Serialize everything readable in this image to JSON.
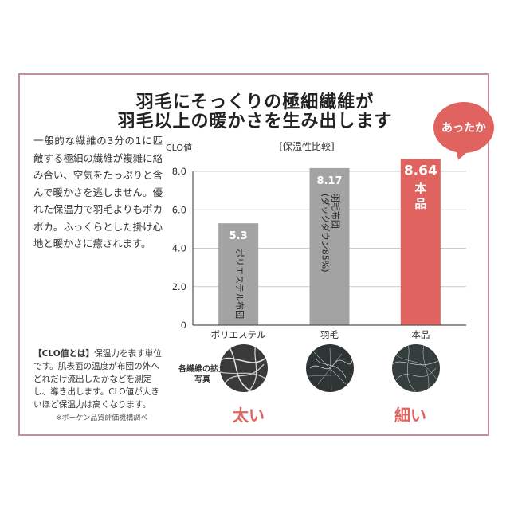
{
  "title_line1": "羽毛にそっくりの極細繊維が",
  "title_line2": "羽毛以上の暖かさを生み出します",
  "badge": "あったか",
  "body": "一般的な繊維の3分の1に匹敵する極細の繊維が複雑に絡み合い、空気をたっぷりと含んで暖かさを逃しません。優れた保温力で羽毛よりもポカポカ。ふっくらとした掛け心地と暖かさに癒されます。",
  "note_heading": "【CLO値とは】",
  "note_text": "保温力を表す単位です。肌表面の温度が布団の外へどれだけ流出したかなどを測定し、導き出します。CLO値が大きいほど保温力は高くなります。",
  "source": "※ボーケン品質評価機構調べ",
  "photos_label": "各繊維の拡大写真",
  "thick_label": "太い",
  "thin_label": "細い",
  "colors": {
    "accent": "#e0635f",
    "bar_gray": "#a3a3a3",
    "frame": "#c48f9b"
  },
  "chart_data": {
    "type": "bar",
    "title": "[保温性比較]",
    "ylabel": "CLO値",
    "ylim": [
      0,
      8.0
    ],
    "yticks": [
      "0",
      "2.0",
      "4.0",
      "6.0",
      "8.0"
    ],
    "categories": [
      "ポリエステル",
      "羽毛",
      "本品"
    ],
    "values": [
      5.3,
      8.17,
      8.64
    ],
    "value_labels": [
      "5.3",
      "8.17",
      "8.64"
    ],
    "bar_texts": [
      "ポリエステル布団",
      "羽毛布団",
      "本品"
    ],
    "bar_subtexts": [
      "",
      "(ダックダウン85%)",
      ""
    ],
    "grid": true
  }
}
